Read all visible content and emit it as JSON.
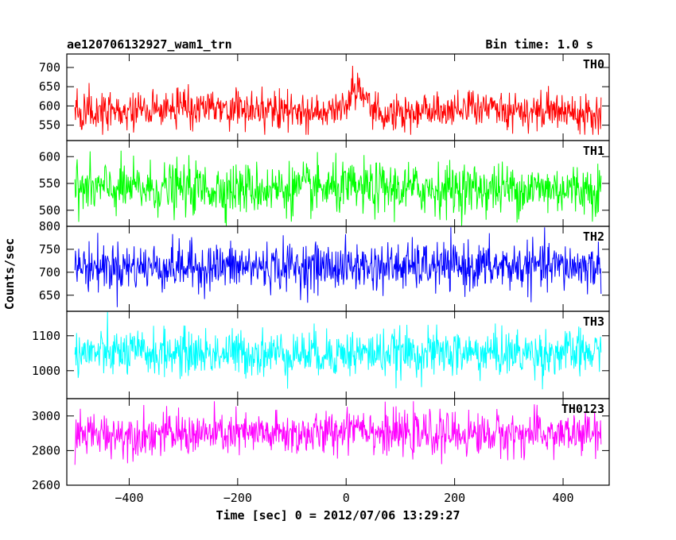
{
  "title_left": "ae120706132927_wam1_trn",
  "title_right": "Bin time: 1.0 s",
  "ylabel": "Counts/sec",
  "xlabel": "Time [sec] 0 = 2012/07/06 13:29:27",
  "chart_data": {
    "type": "line",
    "x_range": [
      -500,
      470
    ],
    "x_step": 1,
    "xlim": [
      -515,
      485
    ],
    "xticks": [
      -400,
      -200,
      0,
      200,
      400
    ],
    "xtick_labels": [
      "−400",
      "−200",
      "0",
      "200",
      "400"
    ],
    "series": [
      {
        "name": "TH0",
        "color": "#ff0000",
        "ylim": [
          510,
          735
        ],
        "yticks": [
          550,
          600,
          650,
          700
        ],
        "ytick_labels": [
          "550",
          "600",
          "650",
          "700"
        ],
        "mean": 585,
        "spread": 24,
        "clip": [
          525,
          732
        ],
        "features": [
          {
            "type": "peak",
            "center": 20,
            "width": 22,
            "amplitude": 60
          },
          {
            "type": "bump",
            "center": -265,
            "width": 80,
            "amplitude": 14
          },
          {
            "type": "bump",
            "center": 270,
            "width": 80,
            "amplitude": 10
          }
        ]
      },
      {
        "name": "TH1",
        "color": "#00ff00",
        "ylim": [
          470,
          630
        ],
        "yticks": [
          500,
          550,
          600
        ],
        "ytick_labels": [
          "500",
          "550",
          "600"
        ],
        "mean": 540,
        "spread": 24,
        "clip": [
          471,
          628
        ],
        "features": []
      },
      {
        "name": "TH2",
        "color": "#0000ff",
        "ylim": [
          615,
          800
        ],
        "yticks": [
          650,
          700,
          750,
          800
        ],
        "ytick_labels": [
          "650",
          "700",
          "750",
          "800"
        ],
        "mean": 712,
        "spread": 26,
        "clip": [
          617,
          798
        ],
        "features": []
      },
      {
        "name": "TH3",
        "color": "#00ffff",
        "ylim": [
          920,
          1170
        ],
        "yticks": [
          1000,
          1100
        ],
        "ytick_labels": [
          "1000",
          "1100"
        ],
        "mean": 1050,
        "spread": 33,
        "clip": [
          930,
          1168
        ],
        "features": []
      },
      {
        "name": "TH0123",
        "color": "#ff00ff",
        "ylim": [
          2600,
          3100
        ],
        "yticks": [
          2600,
          2800,
          3000
        ],
        "ytick_labels": [
          "2600",
          "2800",
          "3000"
        ],
        "mean": 2895,
        "spread": 62,
        "clip": [
          2640,
          3085
        ],
        "features": [
          {
            "type": "bump",
            "center": 20,
            "width": 30,
            "amplitude": 60
          }
        ]
      }
    ]
  }
}
